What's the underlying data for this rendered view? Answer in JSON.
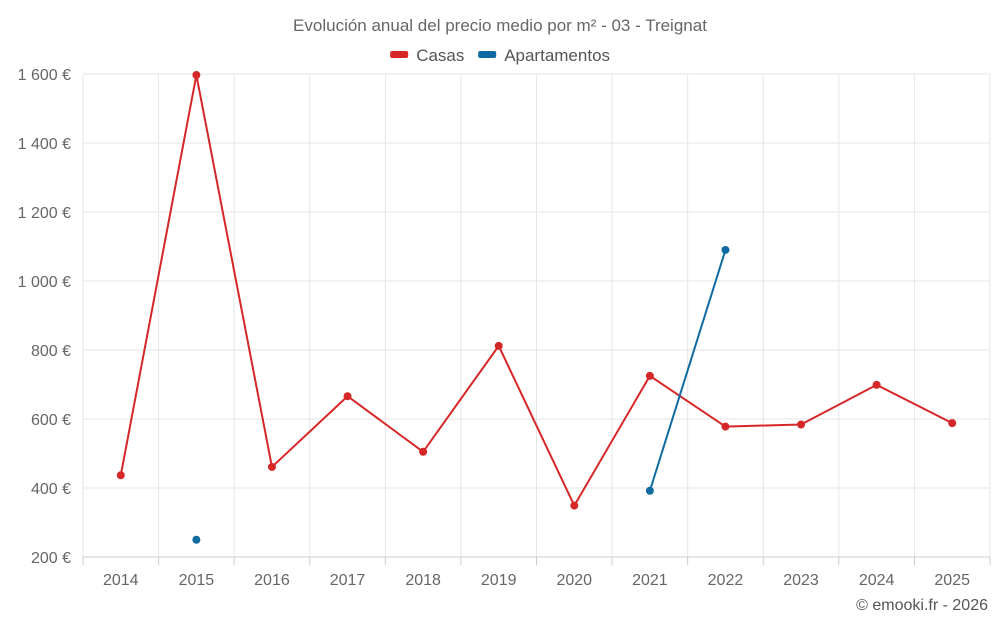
{
  "chart_data": {
    "type": "line",
    "title": "Evolución anual del precio medio por m² - 03 - Treignat",
    "categories": [
      "2014",
      "2015",
      "2016",
      "2017",
      "2018",
      "2019",
      "2020",
      "2021",
      "2022",
      "2023",
      "2024",
      "2025"
    ],
    "series": [
      {
        "name": "Casas",
        "color": "#d62728",
        "values": [
          437,
          1597,
          461,
          666,
          505,
          812,
          349,
          725,
          578,
          584,
          699,
          588
        ]
      },
      {
        "name": "Apartamentos",
        "color": "#0e6aa0",
        "values": [
          null,
          250,
          null,
          null,
          null,
          null,
          null,
          392,
          1090,
          null,
          null,
          null
        ]
      }
    ],
    "ylim": [
      200,
      1600
    ],
    "yticks": [
      200,
      400,
      600,
      800,
      1000,
      1200,
      1400,
      1600
    ],
    "ytick_labels": [
      "200 €",
      "400 €",
      "600 €",
      "800 €",
      "1 000 €",
      "1 200 €",
      "1 400 €",
      "1 600 €"
    ],
    "xlabel": "",
    "ylabel": "",
    "legend_position": "top-center",
    "grid": true
  },
  "credit": "© emooki.fr - 2026"
}
